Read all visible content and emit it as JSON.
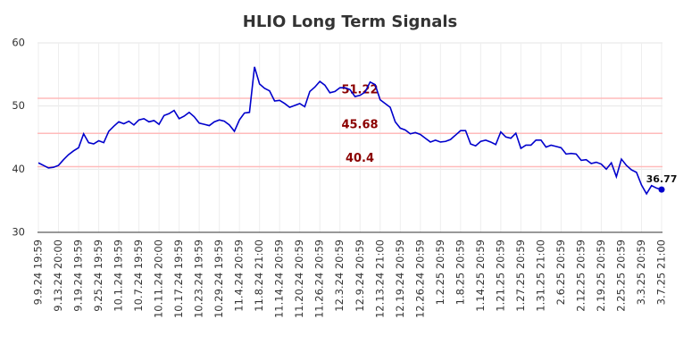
{
  "chart_data": {
    "type": "line",
    "title": "HLIO Long Term Signals",
    "categories": [
      "9.9.24 19:59",
      null,
      null,
      null,
      "9.13.24 20:00",
      null,
      null,
      null,
      "9.19.24 19:59",
      null,
      null,
      null,
      "9.25.24 19:59",
      null,
      null,
      null,
      "10.1.24 19:59",
      null,
      null,
      null,
      "10.7.24 19:59",
      null,
      null,
      null,
      "10.11.24 20:00",
      null,
      null,
      null,
      "10.17.24 19:59",
      null,
      null,
      null,
      "10.23.24 19:59",
      null,
      null,
      null,
      "10.29.24 19:59",
      null,
      null,
      null,
      "11.4.24 20:59",
      null,
      null,
      null,
      "11.8.24 21:00",
      null,
      null,
      null,
      "11.14.24 20:59",
      null,
      null,
      null,
      "11.20.24 20:59",
      null,
      null,
      null,
      "11.26.24 20:59",
      null,
      null,
      null,
      "12.3.24 20:59",
      null,
      null,
      null,
      "12.9.24 20:59",
      null,
      null,
      null,
      "12.13.24 21:00",
      null,
      null,
      null,
      "12.19.24 20:59",
      null,
      null,
      null,
      "12.26.24 20:59",
      null,
      null,
      null,
      "1.2.25 20:59",
      null,
      null,
      null,
      "1.8.25 20:59",
      null,
      null,
      null,
      "1.14.25 20:59",
      null,
      null,
      null,
      "1.21.25 20:59",
      null,
      null,
      null,
      "1.27.25 20:59",
      null,
      null,
      null,
      "1.31.25 21:00",
      null,
      null,
      null,
      "2.6.25 20:59",
      null,
      null,
      null,
      "2.12.25 20:59",
      null,
      null,
      null,
      "2.19.25 20:59",
      null,
      null,
      null,
      "2.25.25 20:59",
      null,
      null,
      null,
      "3.3.25 20:59",
      null,
      null,
      null,
      "3.7.25 21:00"
    ],
    "series": [
      {
        "color": "#0000cc",
        "values": [
          41.0,
          40.6,
          40.2,
          40.3,
          40.6,
          41.5,
          42.3,
          42.9,
          43.4,
          45.6,
          44.2,
          44.0,
          44.5,
          44.2,
          46.0,
          46.8,
          47.5,
          47.2,
          47.6,
          47.0,
          47.8,
          48.0,
          47.5,
          47.7,
          47.1,
          48.5,
          48.8,
          49.3,
          48.0,
          48.4,
          49.0,
          48.3,
          47.3,
          47.1,
          46.9,
          47.5,
          47.8,
          47.6,
          47.0,
          46.0,
          47.8,
          48.9,
          49.0,
          56.2,
          53.5,
          52.8,
          52.4,
          50.8,
          50.9,
          50.4,
          49.8,
          50.1,
          50.4,
          49.9,
          52.3,
          53.0,
          53.9,
          53.3,
          52.1,
          52.3,
          52.9,
          52.9,
          52.6,
          51.5,
          51.7,
          52.2,
          53.8,
          53.4,
          51.0,
          50.4,
          49.8,
          47.5,
          46.5,
          46.2,
          45.6,
          45.8,
          45.5,
          44.9,
          44.3,
          44.6,
          44.3,
          44.4,
          44.7,
          45.4,
          46.1,
          46.1,
          44.0,
          43.7,
          44.4,
          44.6,
          44.3,
          43.9,
          45.9,
          45.1,
          44.9,
          45.7,
          43.3,
          43.8,
          43.8,
          44.6,
          44.6,
          43.5,
          43.8,
          43.6,
          43.4,
          42.4,
          42.5,
          42.4,
          41.4,
          41.5,
          40.9,
          41.1,
          40.8,
          40.0,
          41.0,
          38.8,
          41.6,
          40.6,
          39.9,
          39.5,
          37.5,
          36.1,
          37.4,
          37.0,
          36.77
        ]
      }
    ],
    "hlines": [
      {
        "value": 51.22,
        "color": "#ffbbbb",
        "label_color": "#8b0000"
      },
      {
        "value": 45.68,
        "color": "#ffbbbb",
        "label_color": "#8b0000"
      },
      {
        "value": 40.4,
        "color": "#ffbbbb",
        "label_color": "#8b0000"
      }
    ],
    "ylim": [
      30,
      60
    ],
    "yticks": [
      30,
      40,
      50,
      60
    ],
    "grid": true
  }
}
